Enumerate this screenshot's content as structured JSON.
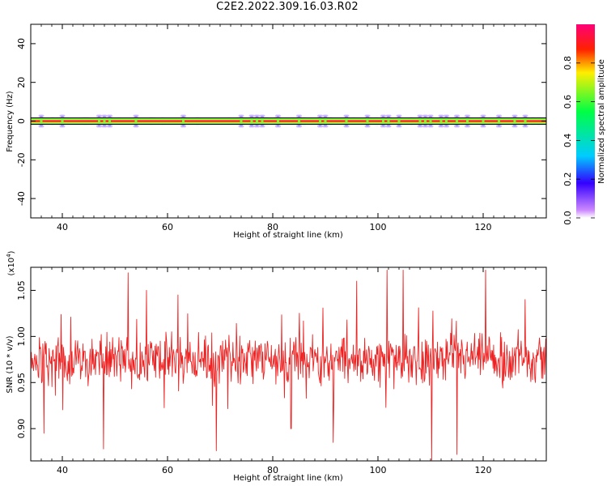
{
  "title": "C2E2.2022.309.16.03.R02",
  "chart_data": [
    {
      "type": "heatmap",
      "xlabel": "Height of straight line (km)",
      "ylabel": "Frequency (Hz)",
      "xlim": [
        34,
        132
      ],
      "ylim": [
        -50,
        50
      ],
      "x_ticks": [
        40,
        60,
        80,
        100,
        120
      ],
      "y_ticks": [
        -40,
        -20,
        0,
        20,
        40
      ],
      "x_tick_labels": [
        "40",
        "60",
        "80",
        "100",
        "120"
      ],
      "y_tick_labels": [
        "-40",
        "-20",
        "0",
        "20",
        "40"
      ],
      "band_frequency_hz": 0,
      "colorbar": {
        "label": "Normalized spectral amplitude",
        "range": [
          0,
          1
        ],
        "ticks": [
          0.0,
          0.2,
          0.4,
          0.6,
          0.8
        ],
        "tick_labels": [
          "0.0",
          "0.2",
          "0.4",
          "0.6",
          "0.8"
        ],
        "colors": [
          "#ffffff",
          "#cc88ff",
          "#3300ff",
          "#00ccff",
          "#00ff66",
          "#ffee00",
          "#ff0000",
          "#ff0077"
        ]
      },
      "bright_spots_km": [
        36,
        40,
        47,
        48,
        49,
        54,
        63,
        74,
        76,
        77,
        78,
        81,
        85,
        89,
        90,
        94,
        98,
        101,
        102,
        104,
        108,
        109,
        110,
        112,
        113,
        115,
        117,
        120,
        123,
        126,
        128
      ]
    },
    {
      "type": "line",
      "xlabel": "Height of straight line (km)",
      "ylabel": "SNR (10 * v/v)",
      "y_multiplier_label": "(x10",
      "y_multiplier_exp": "4",
      "xlim": [
        34,
        132
      ],
      "ylim": [
        0.865,
        1.075
      ],
      "x_ticks": [
        40,
        60,
        80,
        100,
        120
      ],
      "y_ticks": [
        0.9,
        0.95,
        1.0,
        1.05
      ],
      "x_tick_labels": [
        "40",
        "60",
        "80",
        "100",
        "120"
      ],
      "y_tick_labels": [
        "0.90",
        "0.95",
        "1.00",
        "1.05"
      ],
      "series": [
        {
          "color": "#ee2222",
          "mean": 0.975,
          "spread": 0.025,
          "samples": 900,
          "spikes": [
            {
              "x": 36.5,
              "y": 0.895
            },
            {
              "x": 47.8,
              "y": 0.878
            },
            {
              "x": 52.5,
              "y": 1.069
            },
            {
              "x": 56.0,
              "y": 1.05
            },
            {
              "x": 69.3,
              "y": 0.876
            },
            {
              "x": 91.5,
              "y": 0.885
            },
            {
              "x": 96.0,
              "y": 1.06
            },
            {
              "x": 101.7,
              "y": 1.072
            },
            {
              "x": 104.8,
              "y": 1.072
            },
            {
              "x": 110.2,
              "y": 0.866
            },
            {
              "x": 115.0,
              "y": 0.872
            },
            {
              "x": 120.5,
              "y": 1.072
            },
            {
              "x": 128.0,
              "y": 1.04
            },
            {
              "x": 83.5,
              "y": 0.9
            },
            {
              "x": 62.0,
              "y": 1.045
            }
          ]
        }
      ]
    }
  ]
}
